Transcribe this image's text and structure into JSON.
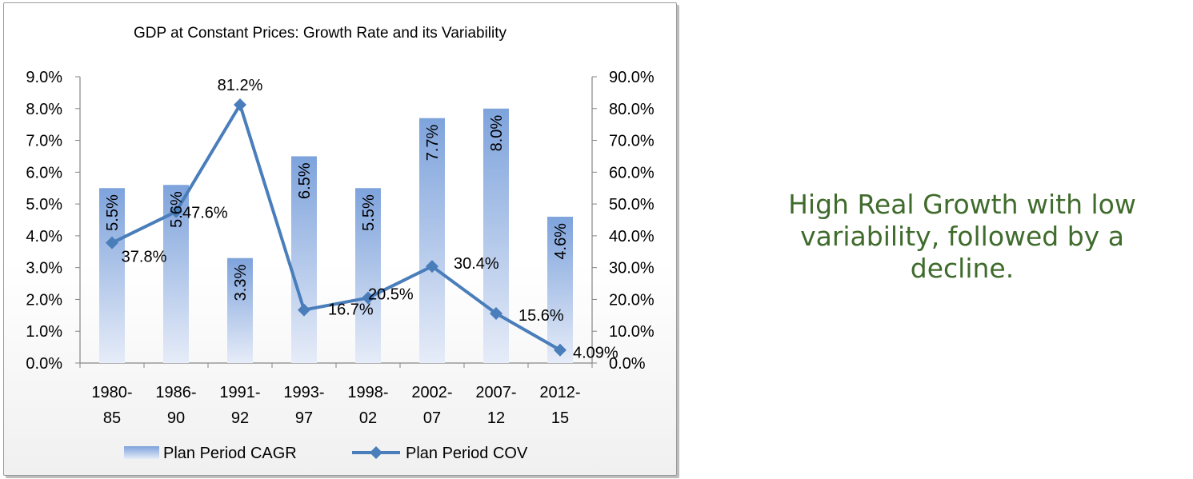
{
  "chart_data": {
    "type": "bar",
    "title": "GDP at Constant Prices: Growth Rate and its Variability",
    "categories": [
      [
        "1980-",
        "85"
      ],
      [
        "1986-",
        "90"
      ],
      [
        "1991-",
        "92"
      ],
      [
        "1993-",
        "97"
      ],
      [
        "1998-",
        "02"
      ],
      [
        "2002-",
        "07"
      ],
      [
        "2007-",
        "12"
      ],
      [
        "2012-",
        "15"
      ]
    ],
    "series": [
      {
        "name": "Plan Period CAGR",
        "kind": "bar",
        "axis": "left",
        "values": [
          5.5,
          5.6,
          3.3,
          6.5,
          5.5,
          7.7,
          8.0,
          4.6
        ],
        "labels": [
          "5.5%",
          "5.6%",
          "3.3%",
          "6.5%",
          "5.5%",
          "7.7%",
          "8.0%",
          "4.6%"
        ],
        "color": "#7ea3dc"
      },
      {
        "name": "Plan Period COV",
        "kind": "line",
        "axis": "right",
        "values": [
          37.8,
          47.6,
          81.2,
          16.7,
          20.5,
          30.4,
          15.6,
          4.09
        ],
        "labels": [
          "37.8%",
          "47.6%",
          "81.2%",
          "16.7%",
          "20.5%",
          "30.4%",
          "15.6%",
          "4.09%"
        ],
        "color": "#4a7ebb"
      }
    ],
    "y_left": {
      "min": 0,
      "max": 9,
      "step": 1,
      "ticks": [
        "0.0%",
        "1.0%",
        "2.0%",
        "3.0%",
        "4.0%",
        "5.0%",
        "6.0%",
        "7.0%",
        "8.0%",
        "9.0%"
      ]
    },
    "y_right": {
      "min": 0,
      "max": 90,
      "step": 10,
      "ticks": [
        "0.0%",
        "10.0%",
        "20.0%",
        "30.0%",
        "40.0%",
        "50.0%",
        "60.0%",
        "70.0%",
        "80.0%",
        "90.0%"
      ]
    },
    "grid": false,
    "legend_position": "bottom"
  },
  "side_note": {
    "lines": [
      "High Real Growth with low",
      "variability, followed by a",
      "decline."
    ]
  }
}
